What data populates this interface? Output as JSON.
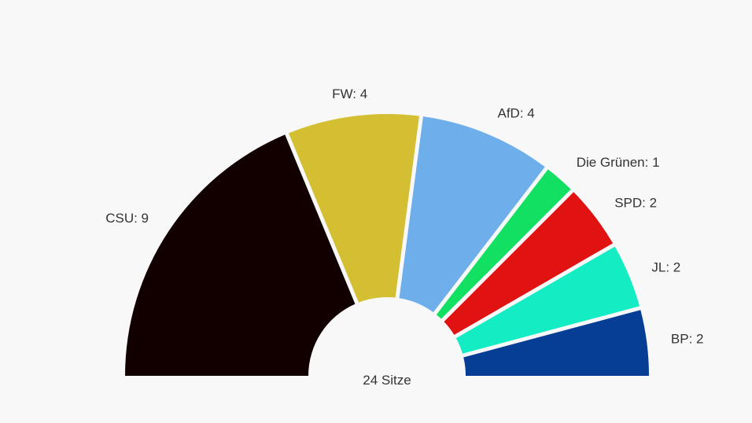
{
  "chart_data": {
    "type": "pie",
    "subtype": "half-donut-parliament",
    "total_label": "24 Sitze",
    "total": 24,
    "segments": [
      {
        "name": "CSU",
        "value": 9,
        "label": "CSU: 9",
        "color": "#120000"
      },
      {
        "name": "FW",
        "value": 4,
        "label": "FW: 4",
        "color": "#d4bf33"
      },
      {
        "name": "AfD",
        "value": 4,
        "label": "AfD: 4",
        "color": "#6eafeb"
      },
      {
        "name": "Die Grünen",
        "value": 1,
        "label": "Die Grünen: 1",
        "color": "#12e062"
      },
      {
        "name": "SPD",
        "value": 2,
        "label": "SPD: 2",
        "color": "#e01212"
      },
      {
        "name": "JL",
        "value": 2,
        "label": "JL: 2",
        "color": "#14edc4"
      },
      {
        "name": "BP",
        "value": 2,
        "label": "BP: 2",
        "color": "#063e96"
      }
    ],
    "background_color": "#f8f8f8"
  }
}
